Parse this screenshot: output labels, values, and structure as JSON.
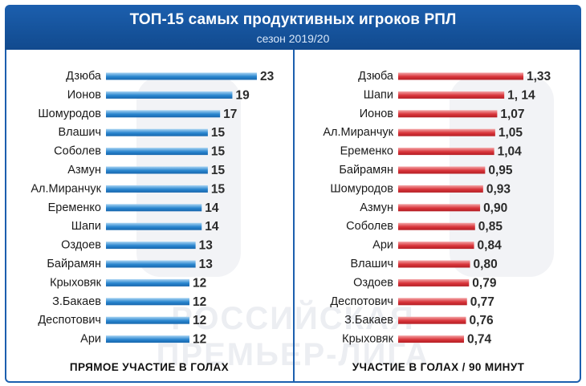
{
  "header": {
    "title": "ТОП-15 самых продуктивных игроков РПЛ",
    "subtitle": "сезон 2019/20"
  },
  "watermark": {
    "line1": "РОССИЙСКАЯ",
    "line2": "ПРЕМЬЕР-ЛИГА"
  },
  "colors": {
    "header_blue": "#1c5fae",
    "left_bar": "#2a86cf",
    "right_bar": "#d9353b"
  },
  "chart_data": [
    {
      "type": "bar",
      "orientation": "horizontal",
      "xlabel": "ПРЯМОЕ УЧАСТИЕ В ГОЛАХ",
      "categories": [
        "Дзюба",
        "Ионов",
        "Шомуродов",
        "Влашич",
        "Соболев",
        "Азмун",
        "Ал.Миранчук",
        "Еременко",
        "Шапи",
        "Оздоев",
        "Байрамян",
        "Крыховяк",
        "З.Бакаев",
        "Деспотович",
        "Ари"
      ],
      "values": [
        23,
        19,
        17,
        15,
        15,
        15,
        15,
        14,
        14,
        13,
        13,
        12,
        12,
        12,
        12
      ],
      "value_labels": [
        "23",
        "19",
        "17",
        "15",
        "15",
        "15",
        "15",
        "14",
        "14",
        "13",
        "13",
        "12",
        "12",
        "12",
        "12"
      ],
      "color": "#2a86cf"
    },
    {
      "type": "bar",
      "orientation": "horizontal",
      "xlabel": "УЧАСТИЕ В ГОЛАХ / 90 МИНУТ",
      "categories": [
        "Дзюба",
        "Шапи",
        "Ионов",
        "Ал.Миранчук",
        "Еременко",
        "Байрамян",
        "Шомуродов",
        "Азмун",
        "Соболев",
        "Ари",
        "Влашич",
        "Оздоев",
        "Деспотович",
        "З.Бакаев",
        "Крыховяк"
      ],
      "values": [
        1.33,
        1.14,
        1.07,
        1.05,
        1.04,
        0.95,
        0.93,
        0.9,
        0.85,
        0.84,
        0.8,
        0.79,
        0.77,
        0.76,
        0.74
      ],
      "value_labels": [
        "1,33",
        "1, 14",
        "1,07",
        "1,05",
        "1,04",
        "0,95",
        "0,93",
        "0,90",
        "0,85",
        "0,84",
        "0,80",
        "0,79",
        "0,77",
        "0,76",
        "0,74"
      ],
      "color": "#d9353b"
    }
  ]
}
